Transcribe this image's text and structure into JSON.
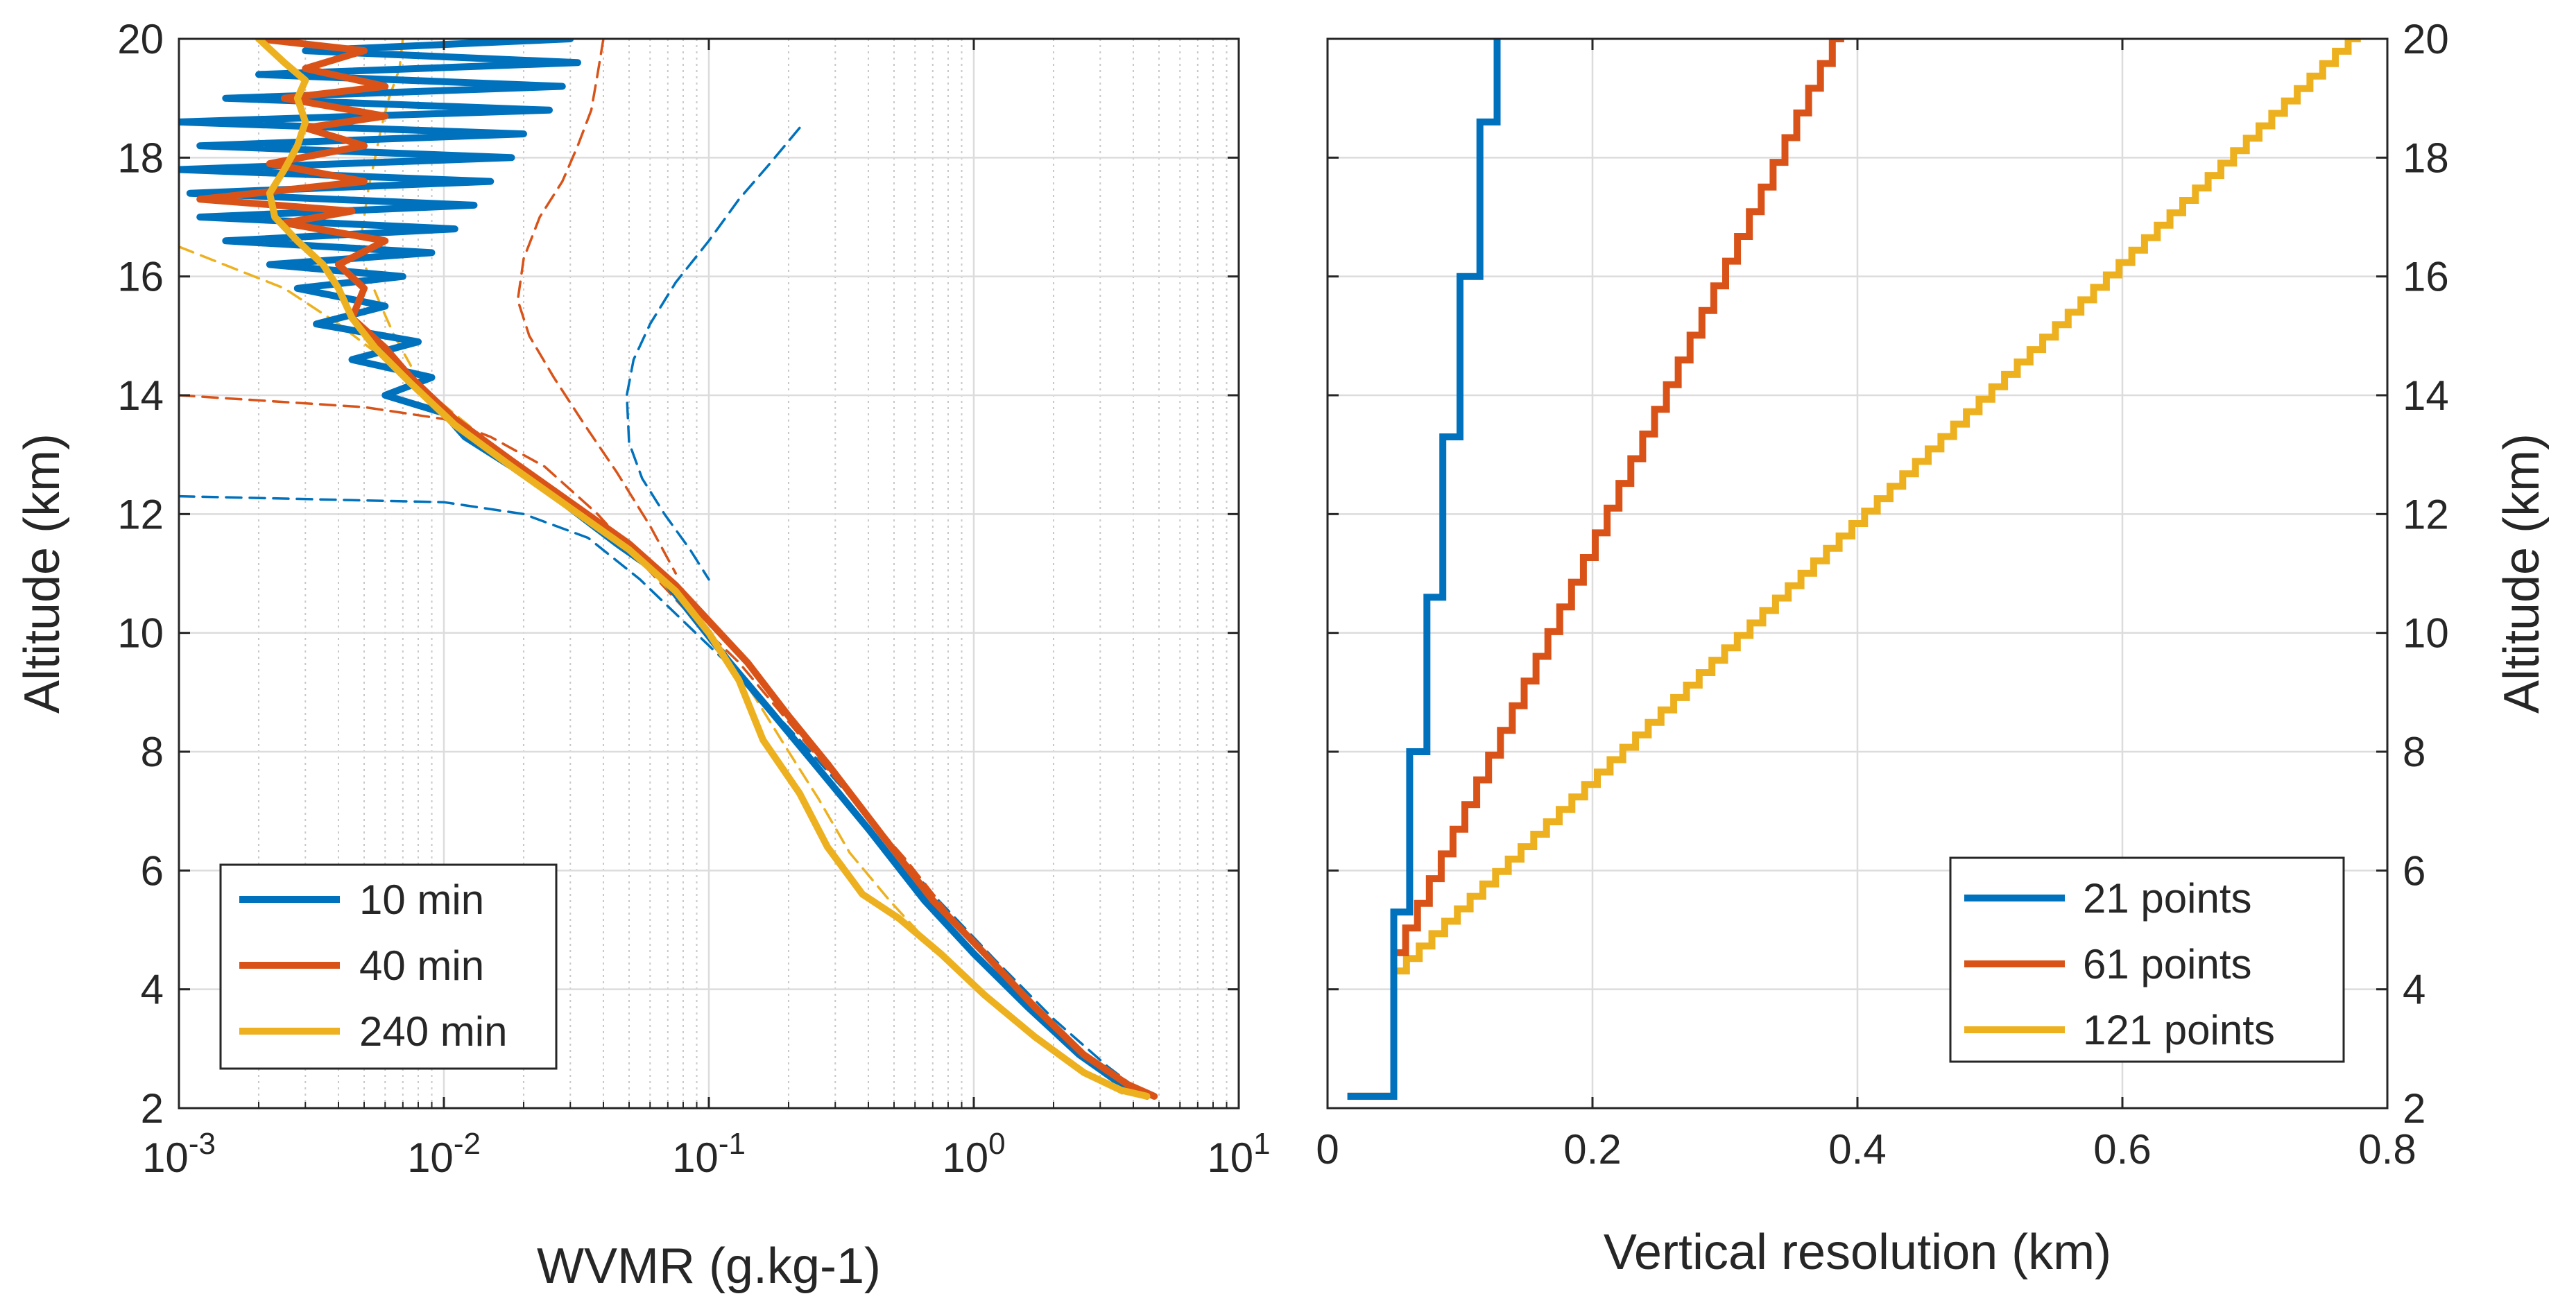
{
  "colors": {
    "blue": "#0072BD",
    "orange": "#D95319",
    "yellow": "#EDB120",
    "grid": "#dcdcdc",
    "axis": "#262626"
  },
  "chart_data": [
    {
      "type": "line",
      "xscale": "log",
      "xlabel": "WVMR (g.kg-1)",
      "ylabel": "Altitude (km)",
      "xlim": [
        0.001,
        10
      ],
      "ylim": [
        2,
        20
      ],
      "xticks": [
        0.001,
        0.01,
        0.1,
        1,
        10
      ],
      "xtick_labels": [
        {
          "base": "10",
          "exp": "-3"
        },
        {
          "base": "10",
          "exp": "-2"
        },
        {
          "base": "10",
          "exp": "-1"
        },
        {
          "base": "10",
          "exp": "0"
        },
        {
          "base": "10",
          "exp": "1"
        }
      ],
      "yticks": [
        "2",
        "4",
        "6",
        "8",
        "10",
        "12",
        "14",
        "16",
        "18",
        "20"
      ],
      "grid": true,
      "minor_grid": true,
      "legend_position": "bottom-left",
      "series": [
        {
          "name": "10 min",
          "color": "#0072BD",
          "style": "solid",
          "points": [
            [
              0.03,
              20
            ],
            [
              0.003,
              19.8
            ],
            [
              0.032,
              19.6
            ],
            [
              0.002,
              19.4
            ],
            [
              0.028,
              19.2
            ],
            [
              0.0015,
              19.0
            ],
            [
              0.025,
              18.8
            ],
            [
              0.001,
              18.6
            ],
            [
              0.02,
              18.4
            ],
            [
              0.0012,
              18.2
            ],
            [
              0.018,
              18.0
            ],
            [
              0.001,
              17.8
            ],
            [
              0.015,
              17.6
            ],
            [
              0.0011,
              17.4
            ],
            [
              0.013,
              17.2
            ],
            [
              0.0012,
              17.0
            ],
            [
              0.011,
              16.8
            ],
            [
              0.0015,
              16.6
            ],
            [
              0.009,
              16.4
            ],
            [
              0.0022,
              16.2
            ],
            [
              0.007,
              16.0
            ],
            [
              0.0028,
              15.8
            ],
            [
              0.006,
              15.5
            ],
            [
              0.0033,
              15.2
            ],
            [
              0.008,
              14.9
            ],
            [
              0.0045,
              14.6
            ],
            [
              0.009,
              14.3
            ],
            [
              0.006,
              14.0
            ],
            [
              0.01,
              13.7
            ],
            [
              0.012,
              13.3
            ],
            [
              0.018,
              12.8
            ],
            [
              0.028,
              12.2
            ],
            [
              0.045,
              11.5
            ],
            [
              0.065,
              11.0
            ],
            [
              0.09,
              10.2
            ],
            [
              0.12,
              9.5
            ],
            [
              0.17,
              8.7
            ],
            [
              0.25,
              7.8
            ],
            [
              0.4,
              6.7
            ],
            [
              0.65,
              5.5
            ],
            [
              1.0,
              4.6
            ],
            [
              1.6,
              3.7
            ],
            [
              2.5,
              2.9
            ],
            [
              3.6,
              2.4
            ],
            [
              4.5,
              2.2
            ]
          ]
        },
        {
          "name": "40 min",
          "color": "#D95319",
          "style": "solid",
          "points": [
            [
              0.002,
              20
            ],
            [
              0.005,
              19.8
            ],
            [
              0.003,
              19.5
            ],
            [
              0.006,
              19.2
            ],
            [
              0.0025,
              19.0
            ],
            [
              0.006,
              18.7
            ],
            [
              0.003,
              18.5
            ],
            [
              0.005,
              18.2
            ],
            [
              0.0022,
              17.9
            ],
            [
              0.005,
              17.6
            ],
            [
              0.0012,
              17.3
            ],
            [
              0.0045,
              17.1
            ],
            [
              0.0025,
              16.9
            ],
            [
              0.006,
              16.6
            ],
            [
              0.004,
              16.2
            ],
            [
              0.005,
              15.8
            ],
            [
              0.0045,
              15.3
            ],
            [
              0.006,
              14.8
            ],
            [
              0.0075,
              14.3
            ],
            [
              0.011,
              13.6
            ],
            [
              0.018,
              12.9
            ],
            [
              0.03,
              12.2
            ],
            [
              0.05,
              11.5
            ],
            [
              0.075,
              10.8
            ],
            [
              0.1,
              10.2
            ],
            [
              0.14,
              9.5
            ],
            [
              0.2,
              8.6
            ],
            [
              0.28,
              7.8
            ],
            [
              0.45,
              6.6
            ],
            [
              0.7,
              5.5
            ],
            [
              1.1,
              4.6
            ],
            [
              1.7,
              3.7
            ],
            [
              2.6,
              2.9
            ],
            [
              3.8,
              2.4
            ],
            [
              4.8,
              2.2
            ]
          ]
        },
        {
          "name": "240 min",
          "color": "#EDB120",
          "style": "solid",
          "points": [
            [
              0.002,
              20
            ],
            [
              0.0025,
              19.6
            ],
            [
              0.003,
              19.3
            ],
            [
              0.0028,
              19.0
            ],
            [
              0.003,
              18.6
            ],
            [
              0.0028,
              18.2
            ],
            [
              0.0025,
              17.8
            ],
            [
              0.0022,
              17.4
            ],
            [
              0.0023,
              17.0
            ],
            [
              0.0028,
              16.6
            ],
            [
              0.0035,
              16.2
            ],
            [
              0.004,
              15.8
            ],
            [
              0.0045,
              15.3
            ],
            [
              0.0055,
              14.8
            ],
            [
              0.0075,
              14.2
            ],
            [
              0.011,
              13.5
            ],
            [
              0.018,
              12.8
            ],
            [
              0.03,
              12.1
            ],
            [
              0.05,
              11.4
            ],
            [
              0.075,
              10.7
            ],
            [
              0.1,
              10.0
            ],
            [
              0.13,
              9.2
            ],
            [
              0.16,
              8.2
            ],
            [
              0.22,
              7.3
            ],
            [
              0.28,
              6.4
            ],
            [
              0.38,
              5.6
            ],
            [
              0.52,
              5.2
            ],
            [
              0.75,
              4.6
            ],
            [
              1.1,
              3.9
            ],
            [
              1.7,
              3.2
            ],
            [
              2.6,
              2.6
            ],
            [
              3.6,
              2.3
            ],
            [
              4.5,
              2.2
            ]
          ]
        },
        {
          "name": "",
          "color": "#0072BD",
          "style": "dashed",
          "points": [
            [
              0.001,
              12.3
            ],
            [
              0.01,
              12.2
            ],
            [
              0.02,
              12.0
            ],
            [
              0.035,
              11.6
            ],
            [
              0.055,
              10.9
            ],
            [
              0.08,
              10.2
            ],
            [
              0.13,
              9.3
            ],
            [
              0.22,
              8.2
            ],
            [
              0.4,
              6.9
            ],
            [
              0.7,
              5.6
            ],
            [
              1.2,
              4.5
            ],
            [
              2.0,
              3.5
            ],
            [
              3.2,
              2.7
            ],
            [
              4.5,
              2.2
            ]
          ]
        },
        {
          "name": "",
          "color": "#0072BD",
          "style": "dashed",
          "points": [
            [
              0.22,
              18.5
            ],
            [
              0.17,
              17.9
            ],
            [
              0.13,
              17.3
            ],
            [
              0.1,
              16.6
            ],
            [
              0.075,
              15.9
            ],
            [
              0.06,
              15.2
            ],
            [
              0.052,
              14.6
            ],
            [
              0.049,
              14.0
            ],
            [
              0.05,
              13.2
            ],
            [
              0.056,
              12.6
            ],
            [
              0.068,
              12.0
            ],
            [
              0.085,
              11.4
            ],
            [
              0.1,
              10.9
            ]
          ]
        },
        {
          "name": "",
          "color": "#D95319",
          "style": "dashed",
          "points": [
            [
              0.001,
              14.0
            ],
            [
              0.005,
              13.8
            ],
            [
              0.01,
              13.6
            ],
            [
              0.015,
              13.3
            ],
            [
              0.024,
              12.8
            ],
            [
              0.038,
              12.0
            ],
            [
              0.058,
              11.1
            ],
            [
              0.085,
              10.3
            ],
            [
              0.13,
              9.5
            ],
            [
              0.2,
              8.5
            ],
            [
              0.32,
              7.4
            ],
            [
              0.55,
              6.2
            ],
            [
              0.9,
              5.0
            ],
            [
              1.5,
              4.0
            ],
            [
              2.5,
              3.0
            ],
            [
              3.6,
              2.4
            ],
            [
              4.8,
              2.2
            ]
          ]
        },
        {
          "name": "",
          "color": "#D95319",
          "style": "dashed",
          "points": [
            [
              0.04,
              20
            ],
            [
              0.038,
              19.4
            ],
            [
              0.036,
              18.8
            ],
            [
              0.032,
              18.2
            ],
            [
              0.028,
              17.6
            ],
            [
              0.023,
              17.0
            ],
            [
              0.02,
              16.3
            ],
            [
              0.019,
              15.6
            ],
            [
              0.021,
              15.0
            ],
            [
              0.026,
              14.3
            ],
            [
              0.034,
              13.5
            ],
            [
              0.045,
              12.7
            ],
            [
              0.06,
              11.8
            ],
            [
              0.075,
              11.0
            ]
          ]
        },
        {
          "name": "",
          "color": "#EDB120",
          "style": "dashed",
          "points": [
            [
              0.001,
              16.5
            ],
            [
              0.0025,
              15.8
            ],
            [
              0.004,
              15.2
            ],
            [
              0.006,
              14.6
            ],
            [
              0.009,
              14.0
            ],
            [
              0.014,
              13.3
            ],
            [
              0.022,
              12.6
            ],
            [
              0.035,
              11.9
            ],
            [
              0.055,
              11.2
            ],
            [
              0.08,
              10.5
            ],
            [
              0.11,
              9.8
            ],
            [
              0.15,
              8.9
            ],
            [
              0.2,
              8.0
            ],
            [
              0.26,
              7.2
            ],
            [
              0.34,
              6.3
            ],
            [
              0.48,
              5.5
            ],
            [
              0.7,
              4.7
            ],
            [
              1.1,
              3.9
            ],
            [
              1.7,
              3.2
            ],
            [
              2.6,
              2.6
            ],
            [
              3.8,
              2.2
            ]
          ]
        },
        {
          "name": "",
          "color": "#EDB120",
          "style": "dashed",
          "points": [
            [
              0.007,
              20
            ],
            [
              0.0068,
              19.5
            ],
            [
              0.0062,
              19.0
            ],
            [
              0.0058,
              18.5
            ],
            [
              0.0055,
              18.0
            ],
            [
              0.0052,
              17.5
            ],
            [
              0.005,
              17.0
            ],
            [
              0.0048,
              16.5
            ],
            [
              0.0052,
              16.0
            ],
            [
              0.0058,
              15.5
            ],
            [
              0.0065,
              15.0
            ],
            [
              0.0075,
              14.5
            ]
          ]
        }
      ]
    },
    {
      "type": "line",
      "xlabel": "Vertical resolution (km)",
      "ylabel": "Altitude (km)",
      "xlim": [
        0,
        0.8
      ],
      "ylim": [
        2,
        20
      ],
      "xticks": [
        "0",
        "0.2",
        "0.4",
        "0.6",
        "0.8"
      ],
      "yticks": [
        "2",
        "4",
        "6",
        "8",
        "10",
        "12",
        "14",
        "16",
        "18",
        "20"
      ],
      "grid": true,
      "legend_position": "bottom-right",
      "series": [
        {
          "name": "21 points",
          "color": "#0072BD",
          "style": "stairs",
          "points": [
            [
              0.015,
              2.2
            ],
            [
              0.05,
              2.2
            ],
            [
              0.05,
              4.3
            ],
            [
              0.05,
              5.3
            ],
            [
              0.062,
              5.3
            ],
            [
              0.062,
              8.0
            ],
            [
              0.075,
              8.0
            ],
            [
              0.075,
              10.6
            ],
            [
              0.087,
              10.6
            ],
            [
              0.087,
              13.3
            ],
            [
              0.1,
              13.3
            ],
            [
              0.1,
              16.0
            ],
            [
              0.115,
              16.0
            ],
            [
              0.115,
              18.6
            ],
            [
              0.128,
              18.6
            ],
            [
              0.128,
              20.0
            ]
          ]
        },
        {
          "name": "61 points",
          "color": "#D95319",
          "style": "stairs-linear",
          "start": [
            0.05,
            4.2
          ],
          "end": [
            0.39,
            20.0
          ],
          "steps": 38
        },
        {
          "name": "121 points",
          "color": "#EDB120",
          "style": "stairs-linear",
          "start": [
            0.05,
            4.1
          ],
          "end": [
            0.78,
            20.0
          ],
          "steps": 76
        }
      ]
    }
  ]
}
